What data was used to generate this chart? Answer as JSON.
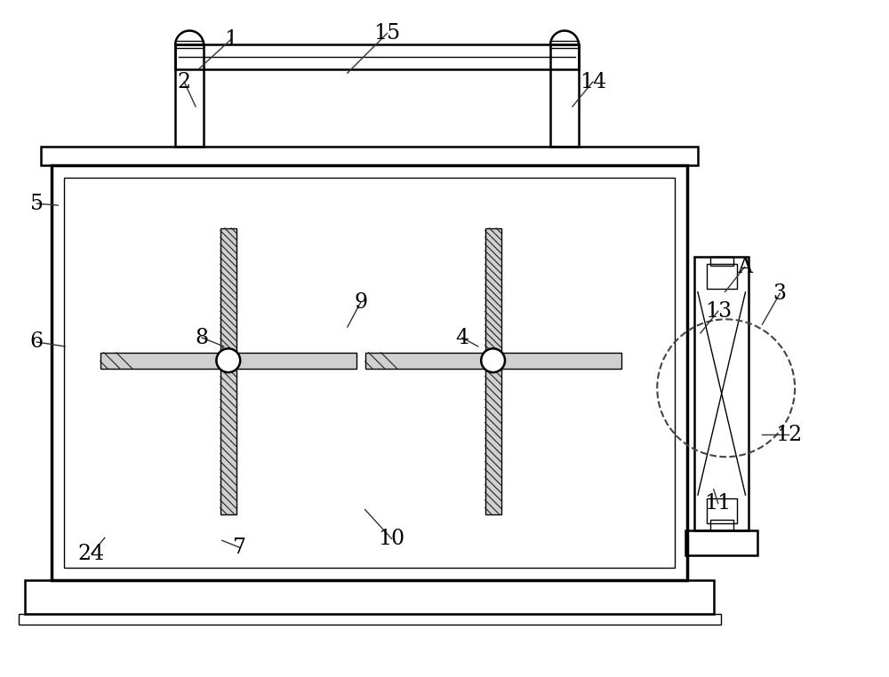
{
  "bg_color": "#ffffff",
  "line_color": "#000000",
  "fig_width": 10.0,
  "fig_height": 7.62,
  "lw_main": 1.8,
  "lw_thick": 2.5,
  "lw_thin": 1.0,
  "lw_lead": 1.0,
  "label_fontsize": 17,
  "leader_color": "#333333"
}
